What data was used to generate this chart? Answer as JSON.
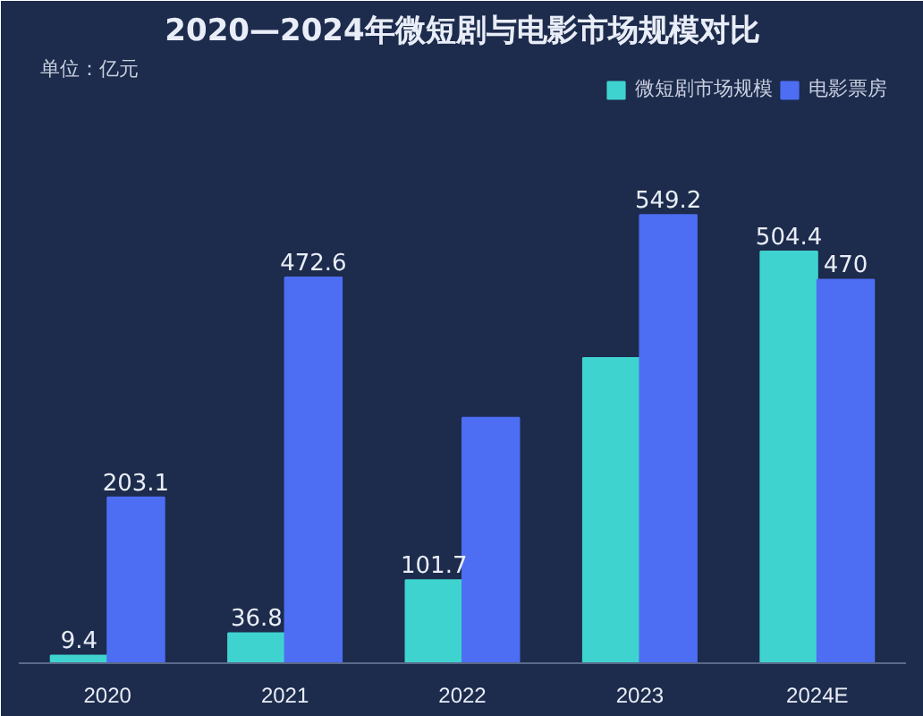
{
  "chart_data": {
    "type": "bar",
    "title": "2020—2024年微短剧与电影市场规模对比",
    "annotations": [
      "单位：亿元"
    ],
    "categories": [
      "2020",
      "2021",
      "2022",
      "2023",
      "2024E"
    ],
    "series": [
      {
        "name": "微短剧市场规模",
        "color": "#3fd3cf",
        "values": [
          9.4,
          36.8,
          101.7,
          373.9,
          504.4
        ],
        "value_labels": [
          "9.4",
          "36.8",
          "101.7",
          null,
          "504.4"
        ]
      },
      {
        "name": "电影票房",
        "color": "#4d6ef2",
        "values": [
          203.1,
          472.6,
          300.7,
          549.2,
          470
        ],
        "value_labels": [
          "203.1",
          "472.6",
          null,
          "549.2",
          "470"
        ]
      }
    ],
    "legend": "top right"
  }
}
